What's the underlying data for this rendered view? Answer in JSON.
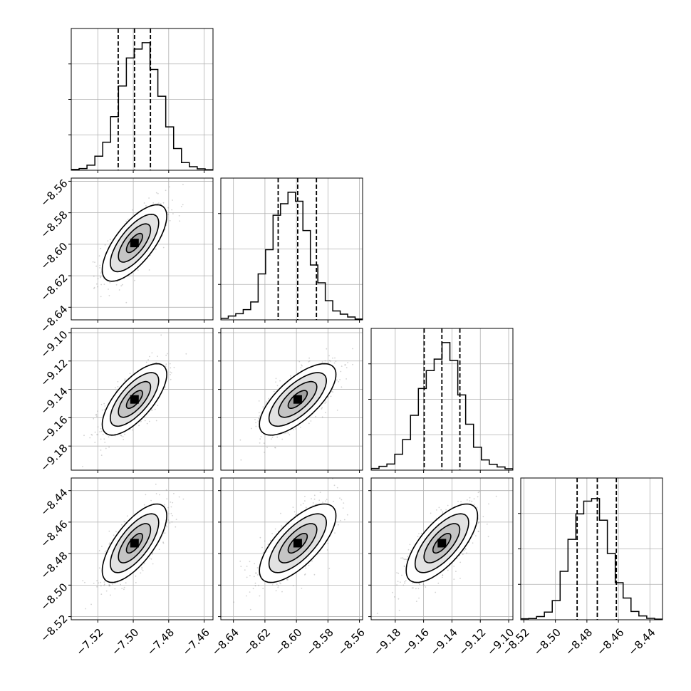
{
  "chart_data": {
    "type": "corner",
    "grid": true,
    "n_params": 4,
    "params": [
      {
        "range": [
          -7.535,
          -7.455
        ],
        "ticks": [
          -7.52,
          -7.5,
          -7.48,
          -7.46
        ],
        "tick_labels": [
          "−7.52",
          "−7.50",
          "−7.48",
          "−7.46"
        ],
        "quantiles": [
          -7.5085,
          -7.4993,
          -7.4903
        ],
        "histogram": [
          0.006,
          0.013,
          0.04,
          0.11,
          0.22,
          0.42,
          0.66,
          0.88,
          0.95,
          1.0,
          0.79,
          0.58,
          0.34,
          0.17,
          0.06,
          0.028,
          0.011,
          0.004
        ]
      },
      {
        "range": [
          -8.648,
          -8.558
        ],
        "ticks": [
          -8.64,
          -8.62,
          -8.6,
          -8.58,
          -8.56
        ],
        "tick_labels": [
          "−8.64",
          "−8.62",
          "−8.60",
          "−8.58",
          "−8.56"
        ],
        "quantiles": [
          -8.6116,
          -8.5992,
          -8.5873
        ],
        "histogram": [
          0.012,
          0.03,
          0.048,
          0.08,
          0.14,
          0.36,
          0.55,
          0.82,
          0.91,
          1.0,
          0.93,
          0.7,
          0.43,
          0.29,
          0.15,
          0.07,
          0.045,
          0.022,
          0.006
        ]
      },
      {
        "range": [
          -9.197,
          -9.097
        ],
        "ticks": [
          -9.18,
          -9.16,
          -9.14,
          -9.12,
          -9.1
        ],
        "tick_labels": [
          "−9.18",
          "−9.16",
          "−9.14",
          "−9.12",
          "−9.10"
        ],
        "quantiles": [
          -9.1596,
          -9.1471,
          -9.1344
        ],
        "histogram": [
          0.013,
          0.03,
          0.048,
          0.125,
          0.24,
          0.43,
          0.64,
          0.78,
          0.87,
          1.0,
          0.86,
          0.59,
          0.36,
          0.18,
          0.08,
          0.046,
          0.025,
          0.011
        ]
      },
      {
        "range": [
          -8.522,
          -8.432
        ],
        "ticks": [
          -8.52,
          -8.5,
          -8.48,
          -8.46,
          -8.44
        ],
        "tick_labels": [
          "−8.52",
          "−8.50",
          "−8.48",
          "−8.46",
          "−8.44"
        ],
        "quantiles": [
          -8.4862,
          -8.4734,
          -8.4613
        ],
        "histogram": [
          0.008,
          0.01,
          0.025,
          0.06,
          0.15,
          0.38,
          0.63,
          0.83,
          0.93,
          0.95,
          0.78,
          0.52,
          0.29,
          0.17,
          0.065,
          0.03,
          0.011,
          0.005
        ]
      }
    ],
    "correlations": {
      "1-0": 0.7,
      "2-0": 0.7,
      "2-1": 0.7,
      "3-0": 0.7,
      "3-1": 0.7,
      "3-2": 0.7
    },
    "contour_levels_sigma": [
      0.5,
      1.0,
      1.5,
      2.0
    ],
    "colors": {
      "line": "#000000",
      "grid": "#b0b0b0",
      "points": "#7f7f7f"
    }
  }
}
